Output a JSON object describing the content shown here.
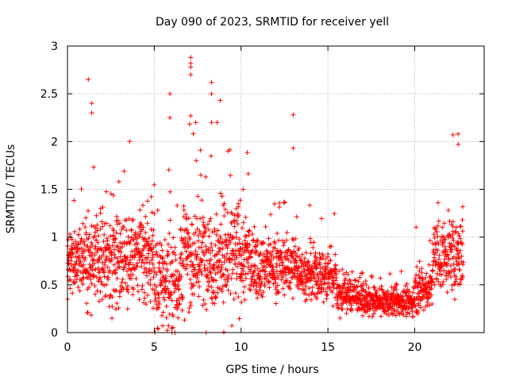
{
  "chart_data": {
    "type": "scatter",
    "title": "Day 090 of 2023, SRMTID for receiver yell",
    "xlabel": "GPS time / hours",
    "ylabel": "SRMTID / TECUs",
    "xlim": [
      0,
      24
    ],
    "ylim": [
      0,
      3
    ],
    "xticks": [
      0,
      5,
      10,
      15,
      20
    ],
    "yticks": [
      0,
      0.5,
      1,
      1.5,
      2,
      2.5,
      3
    ],
    "xtick_labels": [
      "0",
      "5",
      "10",
      "15",
      "20"
    ],
    "ytick_labels": [
      "0",
      "0.5",
      "1",
      "1.5",
      "2",
      "2.5",
      "3"
    ],
    "grid": true,
    "marker": "+",
    "series": [
      {
        "name": "SRMTID",
        "color": "#ff0000",
        "x_range": [
          0,
          22.8
        ],
        "notable_points": [
          {
            "x": 1.2,
            "y": 2.65
          },
          {
            "x": 1.4,
            "y": 2.4
          },
          {
            "x": 1.4,
            "y": 2.3
          },
          {
            "x": 5.9,
            "y": 2.5
          },
          {
            "x": 5.9,
            "y": 2.25
          },
          {
            "x": 7.1,
            "y": 2.88
          },
          {
            "x": 7.1,
            "y": 2.82
          },
          {
            "x": 7.1,
            "y": 2.78
          },
          {
            "x": 7.1,
            "y": 2.7
          },
          {
            "x": 7.1,
            "y": 2.27
          },
          {
            "x": 8.3,
            "y": 2.62
          },
          {
            "x": 8.3,
            "y": 2.5
          },
          {
            "x": 8.8,
            "y": 2.43
          },
          {
            "x": 8.3,
            "y": 2.2
          },
          {
            "x": 13.0,
            "y": 2.28
          },
          {
            "x": 13.0,
            "y": 1.93
          },
          {
            "x": 22.2,
            "y": 2.07
          },
          {
            "x": 22.5,
            "y": 2.08
          },
          {
            "x": 22.5,
            "y": 1.97
          }
        ]
      }
    ]
  }
}
